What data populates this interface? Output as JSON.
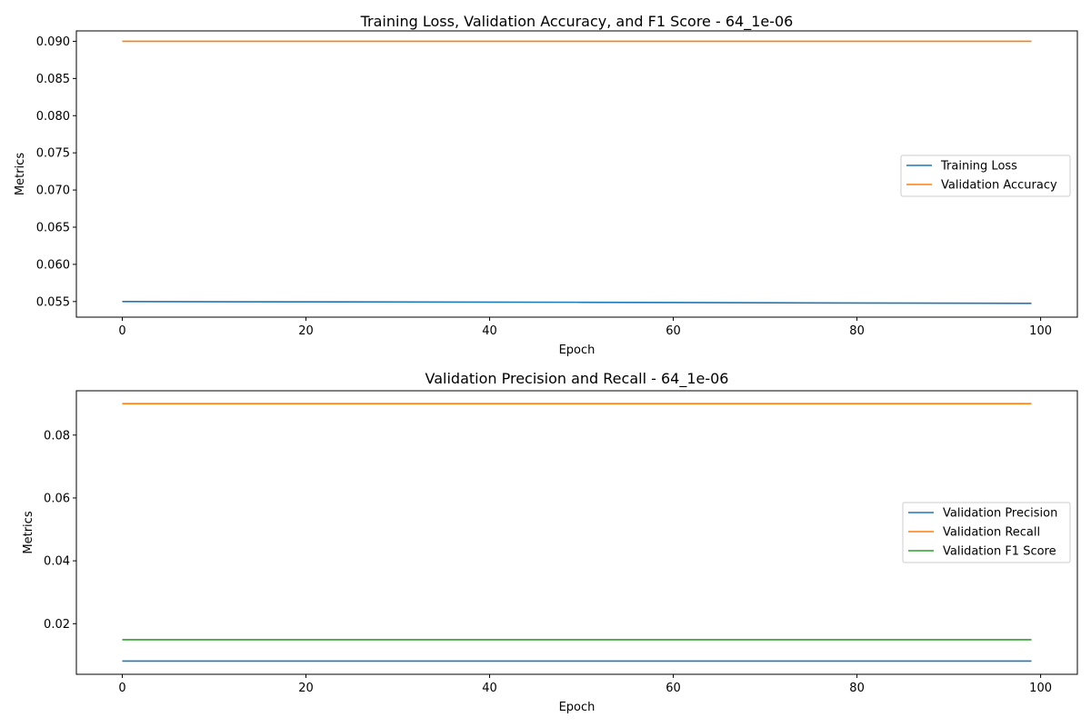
{
  "chart_data": [
    {
      "type": "line",
      "title": "Training Loss, Validation Accuracy, and F1 Score - 64_1e-06",
      "xlabel": "Epoch",
      "ylabel": "Metrics",
      "xlim": [
        -5,
        104
      ],
      "ylim": [
        0.0529,
        0.0914
      ],
      "xticks": [
        0,
        20,
        40,
        60,
        80,
        100
      ],
      "yticks": [
        0.055,
        0.06,
        0.065,
        0.07,
        0.075,
        0.08,
        0.085,
        0.09
      ],
      "ytick_labels": [
        "0.055",
        "0.060",
        "0.065",
        "0.070",
        "0.075",
        "0.080",
        "0.085",
        "0.090"
      ],
      "grid": false,
      "legend_position": "center-right",
      "series": [
        {
          "name": "Training Loss",
          "color": "#1f77b4",
          "x": [
            0,
            50,
            80,
            99
          ],
          "y": [
            0.055,
            0.0549,
            0.0548,
            0.05475
          ]
        },
        {
          "name": "Validation Accuracy",
          "color": "#ff7f0e",
          "x": [
            0,
            99
          ],
          "y": [
            0.09,
            0.09
          ]
        }
      ]
    },
    {
      "type": "line",
      "title": "Validation Precision and Recall - 64_1e-06",
      "xlabel": "Epoch",
      "ylabel": "Metrics",
      "xlim": [
        -5,
        104
      ],
      "ylim": [
        0.0039,
        0.0941
      ],
      "xticks": [
        0,
        20,
        40,
        60,
        80,
        100
      ],
      "yticks": [
        0.02,
        0.04,
        0.06,
        0.08
      ],
      "ytick_labels": [
        "0.02",
        "0.04",
        "0.06",
        "0.08"
      ],
      "grid": false,
      "legend_position": "center-right",
      "series": [
        {
          "name": "Validation Precision",
          "color": "#1f77b4",
          "x": [
            0,
            99
          ],
          "y": [
            0.0081,
            0.0081
          ]
        },
        {
          "name": "Validation Recall",
          "color": "#ff7f0e",
          "x": [
            0,
            99
          ],
          "y": [
            0.09,
            0.09
          ]
        },
        {
          "name": "Validation F1 Score",
          "color": "#2ca02c",
          "x": [
            0,
            99
          ],
          "y": [
            0.0149,
            0.0149
          ]
        }
      ]
    }
  ]
}
